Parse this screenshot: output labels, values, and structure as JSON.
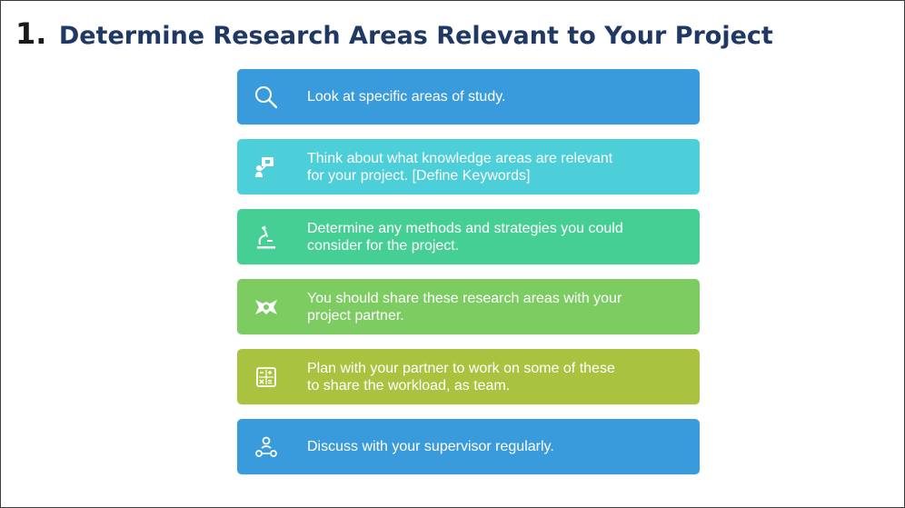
{
  "slide": {
    "title_number": "1.",
    "title_text": "Determine Research Areas Relevant to Your Project"
  },
  "steps": [
    {
      "icon": "search-icon",
      "color": "#3a9bdc",
      "lines": [
        "Look at specific areas of study."
      ]
    },
    {
      "icon": "presenter-icon",
      "color": "#4dcfd9",
      "lines": [
        "Think about what knowledge areas are relevant",
        "for your project. [Define Keywords]"
      ]
    },
    {
      "icon": "microscope-icon",
      "color": "#46cf94",
      "lines": [
        "Determine any methods and strategies  you could",
        "consider for the project."
      ]
    },
    {
      "icon": "handshake-icon",
      "color": "#7dcc62",
      "lines": [
        "You should share these research areas with your",
        "project partner."
      ]
    },
    {
      "icon": "calculator-icon",
      "color": "#a9c240",
      "lines": [
        "Plan with your partner to work on some of these",
        "to share the workload, as team."
      ]
    },
    {
      "icon": "team-icon",
      "color": "#3a9bdc",
      "lines": [
        "Discuss with your supervisor regularly."
      ]
    }
  ]
}
